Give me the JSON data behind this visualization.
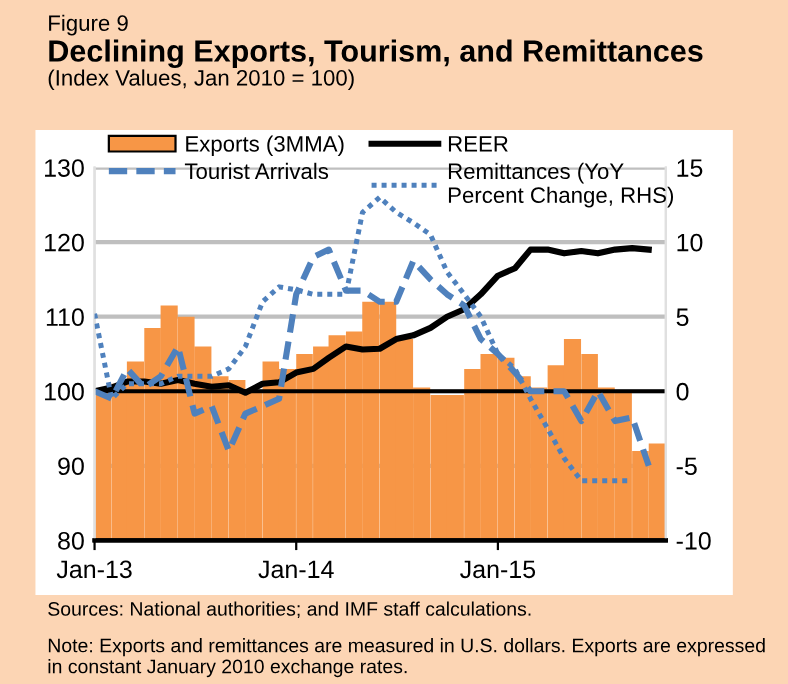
{
  "chart_data": {
    "type": "bar",
    "title": "Declining Exports, Tourism, and Remittances",
    "subtitle": "(Index Values, Jan 2010 = 100)",
    "annotations": [
      "Figure 9",
      "Sources: National authorities; and IMF staff calculations.",
      "Note: Exports and remittances are measured in U.S. dollars. Exports are expressed in constant January 2010 exchange rates."
    ],
    "x": [
      "2013-01",
      "2013-02",
      "2013-03",
      "2013-04",
      "2013-05",
      "2013-06",
      "2013-07",
      "2013-08",
      "2013-09",
      "2013-10",
      "2013-11",
      "2013-12",
      "2014-01",
      "2014-02",
      "2014-03",
      "2014-04",
      "2014-05",
      "2014-06",
      "2014-07",
      "2014-08",
      "2014-09",
      "2014-10",
      "2014-11",
      "2014-12",
      "2015-01",
      "2015-02",
      "2015-03",
      "2015-04",
      "2015-05",
      "2015-06",
      "2015-07",
      "2015-08",
      "2015-09",
      "2015-10"
    ],
    "series": [
      {
        "name": "Exports (3MMA)",
        "color": "#f79646",
        "x": [
          "2013-01-16",
          "2013-02-15",
          "2013-03-16",
          "2013-04-16",
          "2013-05-16",
          "2013-06-16",
          "2013-07-16",
          "2013-08-16",
          "2013-09-16",
          "2013-10-16",
          "2013-11-16",
          "2013-12-16",
          "2014-01-16",
          "2014-02-15",
          "2014-03-16",
          "2014-04-16",
          "2014-05-16",
          "2014-06-16",
          "2014-07-16",
          "2014-08-16",
          "2014-09-16",
          "2014-10-16",
          "2014-11-16",
          "2014-12-16",
          "2015-01-16",
          "2015-02-15",
          "2015-03-16",
          "2015-04-16",
          "2015-05-16",
          "2015-06-16",
          "2015-07-16",
          "2015-08-16",
          "2015-09-16",
          "2015-10-16"
        ],
        "values": [
          100,
          101,
          104,
          108.5,
          111.5,
          110,
          106,
          102,
          101.5,
          100,
          104,
          103,
          105,
          106,
          107.5,
          108,
          112,
          112,
          107,
          100.5,
          99.5,
          99.5,
          103,
          105,
          104.5,
          102,
          100.5,
          103.5,
          107,
          105,
          100.5,
          100,
          92,
          93
        ]
      },
      {
        "name": "REER",
        "type": "line",
        "color": "#000000",
        "line_style": "solid",
        "values": [
          100,
          100.5,
          101.3,
          101.3,
          101,
          101.5,
          101,
          100.6,
          100.8,
          99.8,
          101,
          101.2,
          102.5,
          103,
          104.5,
          106,
          105.6,
          105.7,
          107,
          107.5,
          108.5,
          110,
          111,
          113,
          115.5,
          116.5,
          119,
          119,
          118.5,
          118.8,
          118.5,
          119,
          119.2,
          119
        ]
      },
      {
        "name": "Tourist Arrivals",
        "type": "line",
        "color": "#4f81bd",
        "line_style": "dashed",
        "values": [
          100,
          99,
          103,
          100.5,
          102,
          106,
          97,
          98,
          92,
          97,
          98,
          99,
          113,
          118,
          119,
          113.5,
          113.5,
          112,
          112,
          117.5,
          115,
          113,
          111.5,
          107,
          105,
          102.5,
          100,
          100,
          100,
          96,
          100,
          96,
          96.5,
          90
        ]
      },
      {
        "name": "Remittances (YoY Percent Change, RHS)",
        "type": "line",
        "axis": "y2",
        "color": "#4f81bd",
        "line_style": "dotted",
        "values": [
          5.2,
          -0.5,
          0.5,
          0.5,
          0.5,
          1,
          1,
          1,
          1.5,
          3,
          6,
          7,
          6.8,
          6.5,
          6.5,
          6.5,
          12,
          13,
          12,
          11.3,
          10.5,
          8,
          6.5,
          5,
          2.5,
          1.5,
          -0.5,
          -2.5,
          -4.5,
          -6,
          -6,
          -6,
          -6,
          null
        ]
      }
    ],
    "xlim": [
      "2013-01",
      "2015-11"
    ],
    "xticks": [
      {
        "value": "2013-01",
        "label": "Jan-13"
      },
      {
        "value": "2014-01",
        "label": "Jan-14"
      },
      {
        "value": "2015-01",
        "label": "Jan-15"
      }
    ],
    "ylim": [
      80,
      130
    ],
    "yticks": [
      80,
      90,
      100,
      110,
      120,
      130
    ],
    "y2lim": [
      -10,
      15
    ],
    "y2ticks": [
      -10,
      -5,
      0,
      5,
      10,
      15
    ],
    "ref_lines": [
      {
        "axis": "y",
        "value": 100,
        "color": "#000000"
      }
    ],
    "grid": "y",
    "legend": "top"
  }
}
